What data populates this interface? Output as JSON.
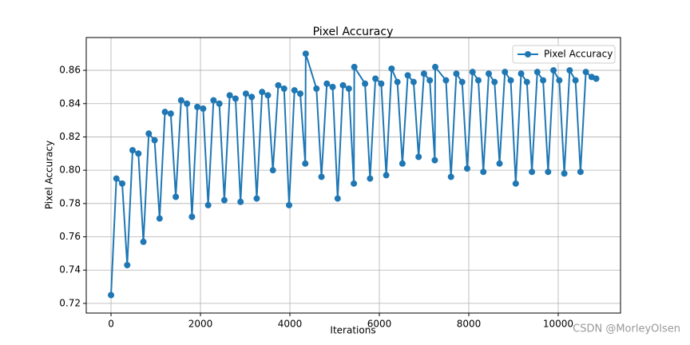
{
  "chart_data": {
    "type": "line",
    "title": "Pixel Accuracy",
    "x_label": "Iterations",
    "y_label": "Pixel Accuracy",
    "x": [
      0,
      120,
      250,
      362,
      482,
      612,
      724,
      844,
      974,
      1086,
      1206,
      1336,
      1448,
      1568,
      1698,
      1810,
      1930,
      2060,
      2172,
      2292,
      2422,
      2534,
      2654,
      2784,
      2896,
      3016,
      3146,
      3258,
      3378,
      3508,
      3620,
      3740,
      3870,
      3982,
      4102,
      4232,
      4344,
      4354,
      4594,
      4706,
      4826,
      4956,
      5068,
      5188,
      5318,
      5430,
      5440,
      5680,
      5792,
      5912,
      6042,
      6154,
      6274,
      6404,
      6516,
      6636,
      6766,
      6878,
      6998,
      7128,
      7240,
      7250,
      7490,
      7602,
      7722,
      7852,
      7964,
      8084,
      8214,
      8326,
      8446,
      8576,
      8688,
      8808,
      8938,
      9050,
      9170,
      9300,
      9412,
      9532,
      9662,
      9774,
      9894,
      10024,
      10136,
      10256,
      10386,
      10498,
      10618,
      10748,
      10850
    ],
    "series": [
      {
        "name": "Pixel Accuracy",
        "color": "#1f77b4",
        "values": [
          0.725,
          0.795,
          0.792,
          0.743,
          0.812,
          0.81,
          0.757,
          0.822,
          0.818,
          0.771,
          0.835,
          0.834,
          0.784,
          0.842,
          0.84,
          0.772,
          0.838,
          0.837,
          0.779,
          0.842,
          0.84,
          0.782,
          0.845,
          0.843,
          0.781,
          0.846,
          0.844,
          0.783,
          0.847,
          0.845,
          0.8,
          0.851,
          0.849,
          0.779,
          0.848,
          0.846,
          0.804,
          0.87,
          0.849,
          0.796,
          0.852,
          0.85,
          0.783,
          0.851,
          0.849,
          0.792,
          0.862,
          0.852,
          0.795,
          0.855,
          0.852,
          0.797,
          0.861,
          0.853,
          0.804,
          0.857,
          0.853,
          0.808,
          0.858,
          0.854,
          0.806,
          0.862,
          0.854,
          0.796,
          0.858,
          0.853,
          0.801,
          0.859,
          0.854,
          0.799,
          0.858,
          0.853,
          0.804,
          0.859,
          0.854,
          0.792,
          0.858,
          0.853,
          0.799,
          0.859,
          0.854,
          0.799,
          0.86,
          0.854,
          0.798,
          0.86,
          0.854,
          0.799,
          0.859,
          0.856,
          0.855
        ]
      }
    ],
    "xlim": [
      -554,
      11393
    ],
    "ylim": [
      0.7142,
      0.8797
    ],
    "xticks": [
      0,
      2000,
      4000,
      6000,
      8000,
      10000
    ],
    "yticks": [
      0.72,
      0.74,
      0.76,
      0.78,
      {
        "value": 0.8,
        "label": "0.80"
      },
      0.82,
      0.84,
      0.86
    ],
    "grid": true,
    "legend": "upper right",
    "watermark": "CSDN @MorleyOlsen"
  }
}
